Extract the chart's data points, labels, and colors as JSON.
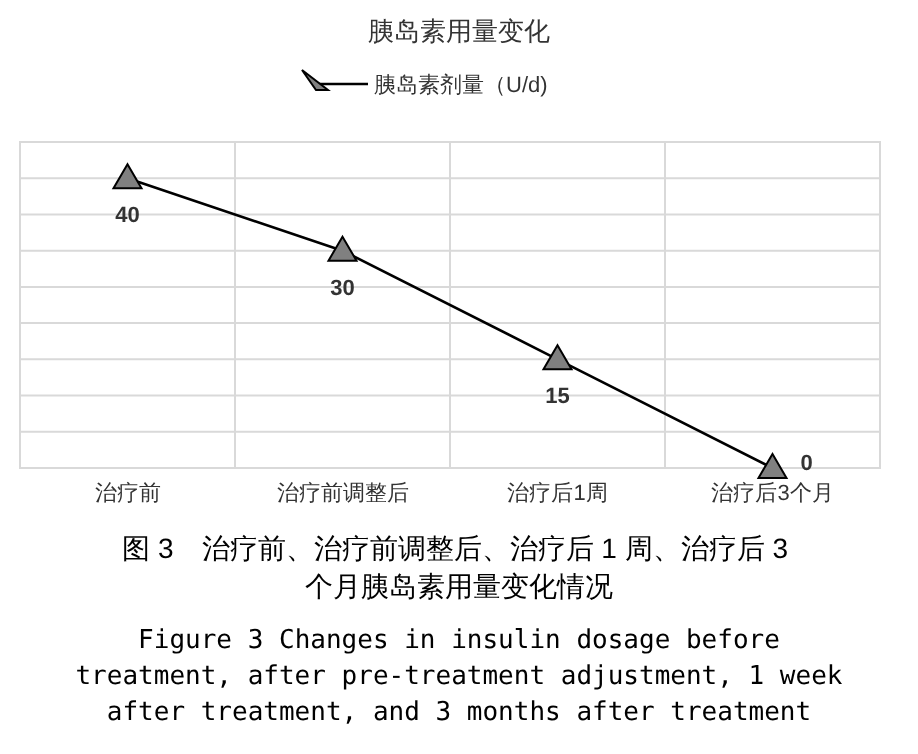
{
  "chart_data": {
    "type": "line",
    "title": "胰岛素用量变化",
    "categories": [
      "治疗前",
      "治疗前调整后",
      "治疗后1周",
      "治疗后3个月"
    ],
    "series": [
      {
        "name": "胰岛素剂量（U/d)",
        "color": "#000000",
        "values": [
          40,
          30,
          15,
          0
        ]
      }
    ],
    "ylim": [
      0,
      45
    ],
    "yticks": [
      {
        "value": 0,
        "label": null
      },
      {
        "value": 5,
        "label": null
      },
      {
        "value": 10,
        "label": null
      },
      {
        "value": 15,
        "label": null
      },
      {
        "value": 20,
        "label": null
      },
      {
        "value": 25,
        "label": null
      },
      {
        "value": 30,
        "label": null
      },
      {
        "value": 35,
        "label": null
      },
      {
        "value": 40,
        "label": null
      },
      {
        "value": 45,
        "label": null
      }
    ],
    "tick_labels": "x",
    "grid": true,
    "legend": "top",
    "marker": "triangle",
    "data_labels": true,
    "annotations": [
      "图 3　治疗前、治疗前调整后、治疗后 1 周、治疗后 3 个月胰岛素用量变化情况",
      "Figure 3 Changes in insulin dosage before treatment, after pre-treatment adjustment, 1 week after treatment, and 3 months after treatment"
    ]
  }
}
